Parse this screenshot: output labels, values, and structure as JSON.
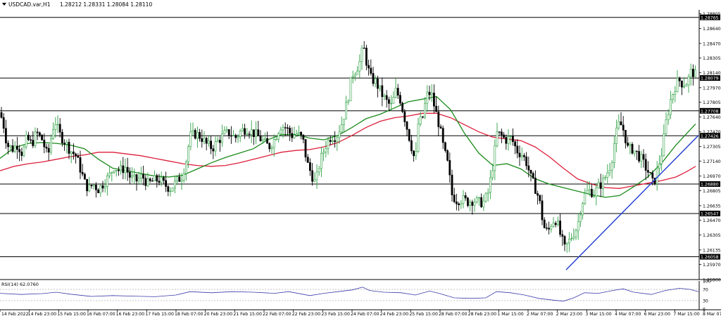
{
  "header": {
    "symbol_label": "USDCAD.var,H1",
    "ohlc_values": "1.28212 1.28331 1.28084 1.28110"
  },
  "rsi_label": "RSI(14) 62.0760",
  "colors": {
    "bull": "#2ea043",
    "bear": "#000000",
    "ma_fast": "#1a8a1a",
    "ma_slow": "#dd1f3a",
    "trendline": "#1f3ad4",
    "rsi": "#3a3aaa",
    "level_line": "#000000",
    "highlight_tag_bg": "#000000",
    "highlight_tag_fg": "#ffffff"
  },
  "chart_data": [
    {
      "type": "candlestick",
      "title": "USDCAD.var,H1",
      "symbol": "USDCAD.var",
      "timeframe": "H1",
      "last_bar": {
        "open": 1.28212,
        "high": 1.28331,
        "low": 1.28084,
        "close": 1.2811
      },
      "ylim": [
        1.258,
        1.2885
      ],
      "y_ticks": [
        "1.28805",
        "1.28640",
        "1.28470",
        "1.28305",
        "1.28140",
        "1.27970",
        "1.27805",
        "1.27640",
        "1.27470",
        "1.27305",
        "1.27140",
        "1.26970",
        "1.26805",
        "1.26635",
        "1.26470",
        "1.26305",
        "1.26135",
        "1.25970",
        "1.25800"
      ],
      "horizontal_levels": [
        1.28765,
        1.28079,
        1.27708,
        1.27426,
        1.2688,
        1.26547,
        1.26058
      ],
      "horizontal_level_labels": [
        "1.28765",
        "1.28079",
        "1.27708",
        "1.27426",
        "1.26880",
        "1.26547",
        "1.26058"
      ],
      "x_labels": [
        "14 Feb 2022",
        "14 Feb 23:00",
        "15 Feb 15:00",
        "16 Feb 07:00",
        "16 Feb 23:00",
        "17 Feb 15:00",
        "18 Feb 07:00",
        "20 Feb 23:00",
        "21 Feb 15:00",
        "22 Feb 07:00",
        "22 Feb 23:00",
        "23 Feb 15:00",
        "24 Feb 07:00",
        "24 Feb 23:00",
        "25 Feb 15:00",
        "28 Feb 07:00",
        "28 Feb 23:00",
        "1 Mar 15:00",
        "2 Mar 07:00",
        "2 Mar 23:00",
        "3 Mar 15:00",
        "4 Mar 07:00",
        "6 Mar 23:00",
        "7 Mar 15:00",
        "8 Mar 07:00"
      ],
      "price_path": [
        [
          0,
          1.2769
        ],
        [
          5,
          1.2755
        ],
        [
          10,
          1.2732
        ],
        [
          18,
          1.2728
        ],
        [
          25,
          1.2733
        ],
        [
          32,
          1.2722
        ],
        [
          38,
          1.274
        ],
        [
          45,
          1.2733
        ],
        [
          52,
          1.2746
        ],
        [
          60,
          1.2738
        ],
        [
          68,
          1.2718
        ],
        [
          74,
          1.2748
        ],
        [
          78,
          1.276
        ],
        [
          84,
          1.2745
        ],
        [
          92,
          1.2736
        ],
        [
          100,
          1.2726
        ],
        [
          108,
          1.272
        ],
        [
          115,
          1.2703
        ],
        [
          120,
          1.269
        ],
        [
          126,
          1.2682
        ],
        [
          132,
          1.2688
        ],
        [
          140,
          1.2682
        ],
        [
          148,
          1.269
        ],
        [
          155,
          1.2697
        ],
        [
          162,
          1.2708
        ],
        [
          170,
          1.2703
        ],
        [
          178,
          1.2707
        ],
        [
          186,
          1.2694
        ],
        [
          194,
          1.2692
        ],
        [
          202,
          1.2697
        ],
        [
          210,
          1.2688
        ],
        [
          218,
          1.2692
        ],
        [
          226,
          1.2693
        ],
        [
          234,
          1.2687
        ],
        [
          242,
          1.2683
        ],
        [
          250,
          1.269
        ],
        [
          258,
          1.2697
        ],
        [
          264,
          1.2713
        ],
        [
          270,
          1.2742
        ],
        [
          278,
          1.2745
        ],
        [
          286,
          1.2741
        ],
        [
          294,
          1.2732
        ],
        [
          302,
          1.2729
        ],
        [
          310,
          1.2737
        ],
        [
          318,
          1.2744
        ],
        [
          326,
          1.2746
        ],
        [
          334,
          1.274
        ],
        [
          342,
          1.2748
        ],
        [
          350,
          1.2751
        ],
        [
          358,
          1.2747
        ],
        [
          366,
          1.2742
        ],
        [
          374,
          1.2736
        ],
        [
          382,
          1.273
        ],
        [
          390,
          1.2739
        ],
        [
          398,
          1.2754
        ],
        [
          406,
          1.2752
        ],
        [
          414,
          1.2743
        ],
        [
          422,
          1.2745
        ],
        [
          430,
          1.2739
        ],
        [
          436,
          1.2712
        ],
        [
          442,
          1.27
        ],
        [
          448,
          1.2688
        ],
        [
          454,
          1.2712
        ],
        [
          462,
          1.2731
        ],
        [
          470,
          1.2742
        ],
        [
          478,
          1.2742
        ],
        [
          486,
          1.2758
        ],
        [
          494,
          1.2784
        ],
        [
          500,
          1.2812
        ],
        [
          506,
          1.2818
        ],
        [
          512,
          1.2828
        ],
        [
          516,
          1.2845
        ],
        [
          520,
          1.2828
        ],
        [
          526,
          1.2808
        ],
        [
          534,
          1.2803
        ],
        [
          542,
          1.279
        ],
        [
          550,
          1.278
        ],
        [
          556,
          1.2776
        ],
        [
          562,
          1.2793
        ],
        [
          568,
          1.2785
        ],
        [
          574,
          1.2765
        ],
        [
          580,
          1.2745
        ],
        [
          586,
          1.2725
        ],
        [
          590,
          1.2712
        ],
        [
          594,
          1.2756
        ],
        [
          600,
          1.2762
        ],
        [
          606,
          1.2788
        ],
        [
          612,
          1.2792
        ],
        [
          618,
          1.2772
        ],
        [
          624,
          1.2754
        ],
        [
          630,
          1.2728
        ],
        [
          636,
          1.271
        ],
        [
          642,
          1.2676
        ],
        [
          648,
          1.267
        ],
        [
          656,
          1.2671
        ],
        [
          664,
          1.2668
        ],
        [
          672,
          1.267
        ],
        [
          680,
          1.2667
        ],
        [
          688,
          1.2668
        ],
        [
          694,
          1.268
        ],
        [
          700,
          1.271
        ],
        [
          706,
          1.2745
        ],
        [
          712,
          1.2743
        ],
        [
          718,
          1.2738
        ],
        [
          726,
          1.274
        ],
        [
          734,
          1.2726
        ],
        [
          742,
          1.2721
        ],
        [
          748,
          1.2712
        ],
        [
          754,
          1.2695
        ],
        [
          760,
          1.2684
        ],
        [
          766,
          1.267
        ],
        [
          772,
          1.264
        ],
        [
          778,
          1.2633
        ],
        [
          784,
          1.2646
        ],
        [
          790,
          1.2648
        ],
        [
          796,
          1.263
        ],
        [
          802,
          1.2615
        ],
        [
          808,
          1.2623
        ],
        [
          814,
          1.2632
        ],
        [
          820,
          1.264
        ],
        [
          826,
          1.2666
        ],
        [
          832,
          1.2678
        ],
        [
          838,
          1.2681
        ],
        [
          844,
          1.2677
        ],
        [
          850,
          1.2685
        ],
        [
          856,
          1.269
        ],
        [
          862,
          1.27
        ],
        [
          868,
          1.2712
        ],
        [
          874,
          1.2742
        ],
        [
          880,
          1.2758
        ],
        [
          886,
          1.2748
        ],
        [
          892,
          1.2727
        ],
        [
          898,
          1.2728
        ],
        [
          904,
          1.2723
        ],
        [
          910,
          1.2717
        ],
        [
          916,
          1.2708
        ],
        [
          922,
          1.27
        ],
        [
          928,
          1.2687
        ],
        [
          934,
          1.2705
        ],
        [
          940,
          1.2724
        ],
        [
          946,
          1.2758
        ],
        [
          952,
          1.2782
        ],
        [
          958,
          1.2797
        ],
        [
          964,
          1.2806
        ],
        [
          970,
          1.2801
        ],
        [
          976,
          1.2803
        ],
        [
          982,
          1.2816
        ],
        [
          988,
          1.2811
        ]
      ],
      "ma_fast_path": [
        [
          0,
          1.2717
        ],
        [
          20,
          1.2729
        ],
        [
          40,
          1.2734
        ],
        [
          60,
          1.2735
        ],
        [
          80,
          1.2734
        ],
        [
          100,
          1.2732
        ],
        [
          120,
          1.2728
        ],
        [
          140,
          1.2716
        ],
        [
          160,
          1.2706
        ],
        [
          180,
          1.2703
        ],
        [
          200,
          1.27
        ],
        [
          220,
          1.2697
        ],
        [
          240,
          1.2696
        ],
        [
          260,
          1.2698
        ],
        [
          280,
          1.2705
        ],
        [
          300,
          1.2712
        ],
        [
          320,
          1.2718
        ],
        [
          340,
          1.2723
        ],
        [
          360,
          1.2728
        ],
        [
          380,
          1.2738
        ],
        [
          400,
          1.2744
        ],
        [
          420,
          1.2744
        ],
        [
          440,
          1.274
        ],
        [
          460,
          1.2738
        ],
        [
          480,
          1.2743
        ],
        [
          500,
          1.2752
        ],
        [
          520,
          1.2762
        ],
        [
          540,
          1.2767
        ],
        [
          560,
          1.2774
        ],
        [
          580,
          1.2781
        ],
        [
          600,
          1.2784
        ],
        [
          620,
          1.2787
        ],
        [
          640,
          1.2772
        ],
        [
          660,
          1.2745
        ],
        [
          680,
          1.2723
        ],
        [
          700,
          1.2709
        ],
        [
          720,
          1.2711
        ],
        [
          740,
          1.2705
        ],
        [
          760,
          1.2694
        ],
        [
          780,
          1.2688
        ],
        [
          800,
          1.2684
        ],
        [
          820,
          1.268
        ],
        [
          840,
          1.2676
        ],
        [
          860,
          1.2673
        ],
        [
          880,
          1.2675
        ],
        [
          900,
          1.2685
        ],
        [
          920,
          1.2696
        ],
        [
          940,
          1.2712
        ],
        [
          960,
          1.2732
        ],
        [
          975,
          1.2745
        ],
        [
          988,
          1.2756
        ]
      ],
      "ma_slow_path": [
        [
          0,
          1.2703
        ],
        [
          20,
          1.2708
        ],
        [
          40,
          1.2711
        ],
        [
          60,
          1.2713
        ],
        [
          80,
          1.2716
        ],
        [
          100,
          1.2719
        ],
        [
          120,
          1.2721
        ],
        [
          140,
          1.2724
        ],
        [
          160,
          1.2724
        ],
        [
          180,
          1.2722
        ],
        [
          200,
          1.272
        ],
        [
          220,
          1.2717
        ],
        [
          240,
          1.2714
        ],
        [
          260,
          1.2711
        ],
        [
          280,
          1.2709
        ],
        [
          300,
          1.2708
        ],
        [
          320,
          1.2709
        ],
        [
          340,
          1.2712
        ],
        [
          360,
          1.2716
        ],
        [
          380,
          1.272
        ],
        [
          400,
          1.2724
        ],
        [
          420,
          1.2726
        ],
        [
          440,
          1.2727
        ],
        [
          460,
          1.273
        ],
        [
          480,
          1.2735
        ],
        [
          500,
          1.2743
        ],
        [
          520,
          1.2752
        ],
        [
          540,
          1.2759
        ],
        [
          560,
          1.2763
        ],
        [
          580,
          1.2765
        ],
        [
          600,
          1.2768
        ],
        [
          620,
          1.2768
        ],
        [
          640,
          1.2763
        ],
        [
          660,
          1.2755
        ],
        [
          680,
          1.2747
        ],
        [
          700,
          1.2741
        ],
        [
          720,
          1.2739
        ],
        [
          740,
          1.2737
        ],
        [
          760,
          1.273
        ],
        [
          780,
          1.2719
        ],
        [
          800,
          1.2706
        ],
        [
          820,
          1.2694
        ],
        [
          840,
          1.2688
        ],
        [
          860,
          1.2684
        ],
        [
          880,
          1.2683
        ],
        [
          900,
          1.2686
        ],
        [
          920,
          1.2689
        ],
        [
          940,
          1.2692
        ],
        [
          960,
          1.2696
        ],
        [
          975,
          1.2702
        ],
        [
          988,
          1.2708
        ]
      ],
      "trendline": {
        "from": [
          804,
          1.2591
        ],
        "to": [
          992,
          1.2743
        ]
      },
      "rsi": {
        "label": "RSI(14) 62.0760",
        "levels": [
          70,
          30
        ],
        "y_ticks": [
          "100",
          "70",
          "30",
          "0"
        ],
        "values": [
          [
            0,
            56
          ],
          [
            30,
            52
          ],
          [
            60,
            55
          ],
          [
            80,
            60
          ],
          [
            100,
            53
          ],
          [
            130,
            45
          ],
          [
            160,
            48
          ],
          [
            190,
            46
          ],
          [
            220,
            44
          ],
          [
            250,
            50
          ],
          [
            270,
            62
          ],
          [
            300,
            58
          ],
          [
            330,
            62
          ],
          [
            360,
            60
          ],
          [
            390,
            56
          ],
          [
            410,
            62
          ],
          [
            440,
            48
          ],
          [
            460,
            56
          ],
          [
            480,
            62
          ],
          [
            500,
            68
          ],
          [
            515,
            78
          ],
          [
            525,
            66
          ],
          [
            545,
            60
          ],
          [
            570,
            58
          ],
          [
            590,
            50
          ],
          [
            610,
            64
          ],
          [
            625,
            55
          ],
          [
            645,
            40
          ],
          [
            670,
            38
          ],
          [
            690,
            40
          ],
          [
            705,
            62
          ],
          [
            725,
            58
          ],
          [
            745,
            50
          ],
          [
            765,
            38
          ],
          [
            785,
            32
          ],
          [
            800,
            28
          ],
          [
            815,
            40
          ],
          [
            830,
            58
          ],
          [
            850,
            56
          ],
          [
            870,
            66
          ],
          [
            885,
            72
          ],
          [
            900,
            60
          ],
          [
            925,
            52
          ],
          [
            945,
            66
          ],
          [
            965,
            74
          ],
          [
            980,
            70
          ],
          [
            992,
            62
          ]
        ]
      }
    }
  ]
}
